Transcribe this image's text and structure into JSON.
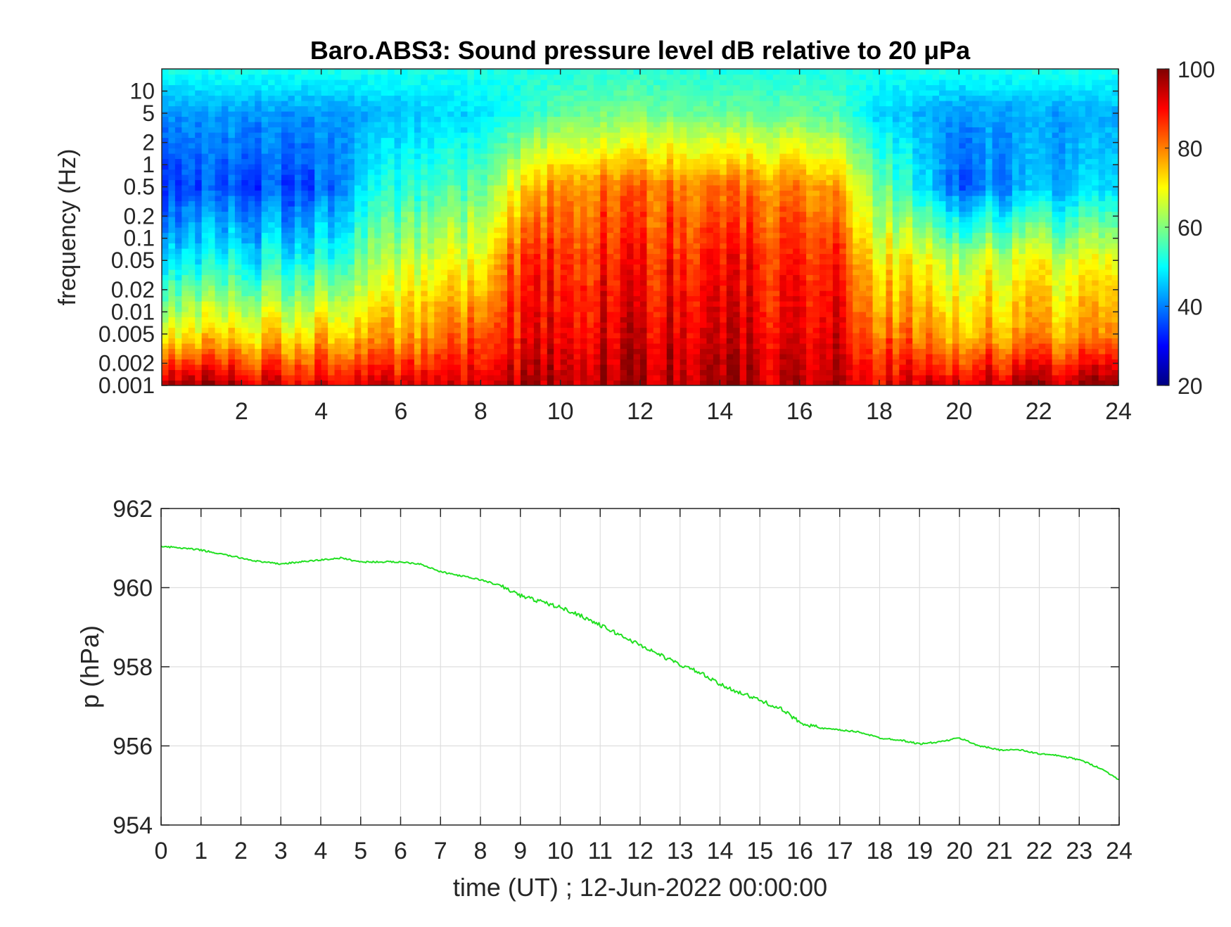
{
  "chart_data": [
    {
      "type": "heatmap",
      "title": "Baro.ABS3: Sound pressure level dB relative to 20 μPa",
      "xlabel": "",
      "ylabel": "frequency (Hz)",
      "xlim": [
        0,
        24
      ],
      "x_ticks": [
        2,
        4,
        6,
        8,
        10,
        12,
        14,
        16,
        18,
        20,
        22,
        24
      ],
      "x_tick_labels": [
        "2",
        "4",
        "6",
        "8",
        "10",
        "12",
        "14",
        "16",
        "18",
        "20",
        "22",
        "24"
      ],
      "y_scale": "log",
      "ylim": [
        0.001,
        20
      ],
      "y_ticks": [
        0.001,
        0.002,
        0.005,
        0.01,
        0.02,
        0.05,
        0.1,
        0.2,
        0.5,
        1,
        2,
        5,
        10
      ],
      "y_tick_labels": [
        "0.001",
        "0.002",
        "0.005",
        "0.01",
        "0.02",
        "0.05",
        "0.1",
        "0.2",
        "0.5",
        "1",
        "2",
        "5",
        "10"
      ],
      "colormap": "jet",
      "clim": [
        20,
        100
      ],
      "colorbar_ticks": [
        20,
        40,
        60,
        80,
        100
      ],
      "colorbar_tick_labels": [
        "20",
        "40",
        "60",
        "80",
        "100"
      ],
      "colorbar_position": "right",
      "time_hours": [
        0,
        2,
        4,
        5,
        6,
        8,
        9,
        10,
        12,
        14,
        16,
        17,
        18,
        20,
        22,
        24
      ],
      "level_db_at_frequency": [
        {
          "frequency": 0.001,
          "values": [
            100,
            94,
            92,
            92,
            91,
            93,
            96,
            97,
            97,
            96,
            95,
            95,
            92,
            94,
            96,
            100
          ]
        },
        {
          "frequency": 0.005,
          "values": [
            72,
            72,
            74,
            74,
            76,
            84,
            90,
            92,
            93,
            92,
            91,
            91,
            82,
            76,
            77,
            80
          ]
        },
        {
          "frequency": 0.05,
          "values": [
            50,
            50,
            52,
            58,
            64,
            70,
            86,
            88,
            88,
            88,
            87,
            86,
            72,
            66,
            68,
            70
          ]
        },
        {
          "frequency": 0.5,
          "values": [
            36,
            36,
            37,
            47,
            52,
            58,
            72,
            80,
            82,
            80,
            80,
            76,
            60,
            38,
            44,
            48
          ]
        },
        {
          "frequency": 5,
          "values": [
            42,
            42,
            42,
            43,
            45,
            48,
            52,
            58,
            60,
            58,
            58,
            56,
            47,
            42,
            43,
            44
          ]
        },
        {
          "frequency": 20,
          "values": [
            52,
            52,
            52,
            52,
            52,
            52,
            52,
            52,
            53,
            52,
            52,
            52,
            52,
            52,
            52,
            52
          ]
        }
      ]
    },
    {
      "type": "line",
      "title": "",
      "xlabel": "time (UT) ; 12-Jun-2022 00:00:00",
      "ylabel": "p (hPa)",
      "xlim": [
        0,
        24
      ],
      "ylim": [
        954,
        962
      ],
      "x_ticks": [
        0,
        1,
        2,
        3,
        4,
        5,
        6,
        7,
        8,
        9,
        10,
        11,
        12,
        13,
        14,
        15,
        16,
        17,
        18,
        19,
        20,
        21,
        22,
        23,
        24
      ],
      "x_tick_labels": [
        "0",
        "1",
        "2",
        "3",
        "4",
        "5",
        "6",
        "7",
        "8",
        "9",
        "10",
        "11",
        "12",
        "13",
        "14",
        "15",
        "16",
        "17",
        "18",
        "19",
        "20",
        "21",
        "22",
        "23",
        "24"
      ],
      "y_ticks": [
        954,
        956,
        958,
        960,
        962
      ],
      "y_tick_labels": [
        "954",
        "956",
        "958",
        "960",
        "962"
      ],
      "grid": true,
      "series": [
        {
          "color": "#22e022",
          "x": [
            0,
            0.5,
            1,
            1.5,
            2,
            2.5,
            3,
            3.5,
            4,
            4.5,
            5,
            5.5,
            6,
            6.5,
            7,
            7.5,
            8,
            8.5,
            9,
            9.5,
            10,
            10.5,
            11,
            11.5,
            12,
            12.5,
            13,
            13.5,
            14,
            14.5,
            15,
            15.5,
            16,
            16.5,
            17,
            17.5,
            18,
            18.5,
            19,
            19.5,
            20,
            20.5,
            21,
            21.5,
            22,
            22.5,
            23,
            23.5,
            24
          ],
          "y": [
            961.05,
            961.0,
            960.95,
            960.85,
            960.75,
            960.65,
            960.6,
            960.65,
            960.7,
            960.75,
            960.65,
            960.65,
            960.65,
            960.6,
            960.4,
            960.3,
            960.2,
            960.05,
            959.8,
            959.65,
            959.5,
            959.3,
            959.05,
            958.8,
            958.55,
            958.3,
            958.05,
            957.85,
            957.55,
            957.35,
            957.15,
            956.95,
            956.6,
            956.45,
            956.4,
            956.35,
            956.2,
            956.15,
            956.05,
            956.1,
            956.2,
            956.0,
            955.9,
            955.9,
            955.8,
            955.75,
            955.65,
            955.45,
            955.15
          ]
        }
      ]
    }
  ]
}
